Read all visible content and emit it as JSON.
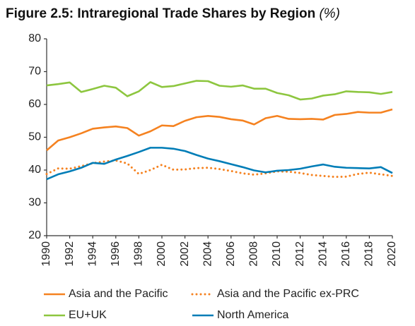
{
  "chart_data": {
    "type": "line",
    "title": "Figure 2.5: Intraregional Trade Shares by Region",
    "unit": "(%)",
    "x": [
      1990,
      1991,
      1992,
      1993,
      1994,
      1995,
      1996,
      1997,
      1998,
      1999,
      2000,
      2001,
      2002,
      2003,
      2004,
      2005,
      2006,
      2007,
      2008,
      2009,
      2010,
      2011,
      2012,
      2013,
      2014,
      2015,
      2016,
      2017,
      2018,
      2019,
      2020
    ],
    "xlim": [
      1990,
      2020
    ],
    "xticks": [
      1990,
      1992,
      1994,
      1996,
      1998,
      2000,
      2002,
      2004,
      2006,
      2008,
      2010,
      2012,
      2014,
      2016,
      2018,
      2020
    ],
    "ylim": [
      20,
      80
    ],
    "yticks": [
      20,
      30,
      40,
      50,
      60,
      70,
      80
    ],
    "grid": false,
    "legend": "bottom",
    "series": [
      {
        "name": "Asia and the Pacific",
        "color": "#f58220",
        "dash": "solid",
        "values": [
          46,
          49,
          50,
          51.2,
          52.6,
          53,
          53.3,
          52.8,
          50.5,
          51.8,
          53.6,
          53.4,
          55,
          56.1,
          56.5,
          56.2,
          55.5,
          55.1,
          53.9,
          55.8,
          56.5,
          55.6,
          55.5,
          55.6,
          55.4,
          56.8,
          57.1,
          57.7,
          57.5,
          57.5,
          58.5
        ]
      },
      {
        "name": "Asia and the Pacific ex-PRC",
        "color": "#f58220",
        "dash": "dotted",
        "values": [
          38.8,
          40.5,
          40.4,
          41.2,
          42.1,
          42.6,
          42.9,
          42,
          38.8,
          40,
          41.6,
          40.1,
          40.2,
          40.6,
          40.7,
          40.3,
          39.7,
          39,
          38.6,
          39,
          39.6,
          39.5,
          39.1,
          38.5,
          38.2,
          37.9,
          38,
          38.8,
          39.2,
          38.7,
          38.2
        ]
      },
      {
        "name": "EU+UK",
        "color": "#8dc63f",
        "dash": "solid",
        "values": [
          65.8,
          66.2,
          66.7,
          63.8,
          64.7,
          65.7,
          65.1,
          62.5,
          64,
          66.8,
          65.3,
          65.6,
          66.4,
          67.2,
          67.1,
          65.7,
          65.4,
          65.8,
          64.8,
          64.8,
          63.5,
          62.8,
          61.5,
          61.8,
          62.7,
          63.1,
          64,
          63.8,
          63.7,
          63.2,
          63.8
        ]
      },
      {
        "name": "North America",
        "color": "#007db7",
        "dash": "solid",
        "values": [
          37.2,
          38.7,
          39.6,
          40.7,
          42.2,
          41.9,
          43.2,
          44.3,
          45.5,
          46.8,
          46.8,
          46.5,
          45.8,
          44.6,
          43.5,
          42.7,
          41.8,
          40.9,
          39.9,
          39.3,
          39.8,
          40,
          40.4,
          41.1,
          41.7,
          41,
          40.7,
          40.6,
          40.5,
          40.9,
          39.1
        ]
      }
    ]
  }
}
